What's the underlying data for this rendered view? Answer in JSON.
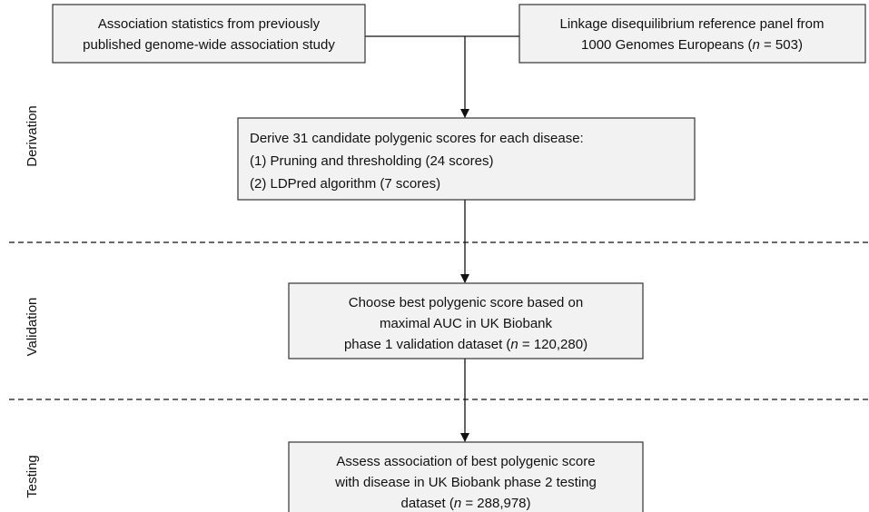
{
  "stages": [
    "Derivation",
    "Validation",
    "Testing"
  ],
  "nodes": [
    {
      "lines": [
        [
          "Association statistics from previously"
        ],
        [
          "published genome-wide association study"
        ]
      ]
    },
    {
      "lines": [
        [
          "Linkage disequilibrium reference panel from"
        ],
        [
          "1000 Genomes Europeans (",
          "n",
          " = 503)"
        ]
      ]
    },
    {
      "lines": [
        [
          "Derive 31 candidate polygenic scores for each disease:"
        ],
        [
          "(1) Pruning and thresholding (24 scores)"
        ],
        [
          "(2) LDPred algorithm (7 scores)"
        ]
      ]
    },
    {
      "lines": [
        [
          "Choose best polygenic score based on"
        ],
        [
          "maximal AUC in UK Biobank"
        ],
        [
          "phase 1 validation dataset (",
          "n",
          " = 120,280)"
        ]
      ]
    },
    {
      "lines": [
        [
          "Assess association of best polygenic score"
        ],
        [
          "with disease in UK Biobank phase 2 testing"
        ],
        [
          "dataset (",
          "n",
          " = 288,978)"
        ]
      ]
    }
  ]
}
